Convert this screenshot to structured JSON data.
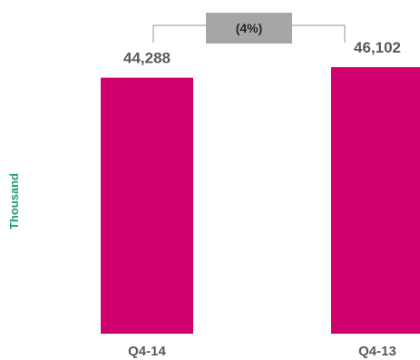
{
  "chart_data": {
    "type": "bar",
    "categories": [
      "Q4-14",
      "Q4-13"
    ],
    "values": [
      44288,
      46102
    ],
    "value_labels": [
      "44,288",
      "46,102"
    ],
    "ylabel": "Thousand",
    "ylim": [
      0,
      48000
    ],
    "grid": false,
    "change_annotation": "(4%)",
    "colors": {
      "bar": "#d0006f",
      "ylabel": "#1a9e6e",
      "label_text": "#595959",
      "change_box": "#a6a6a6",
      "bracket": "#a6a6a6"
    }
  }
}
